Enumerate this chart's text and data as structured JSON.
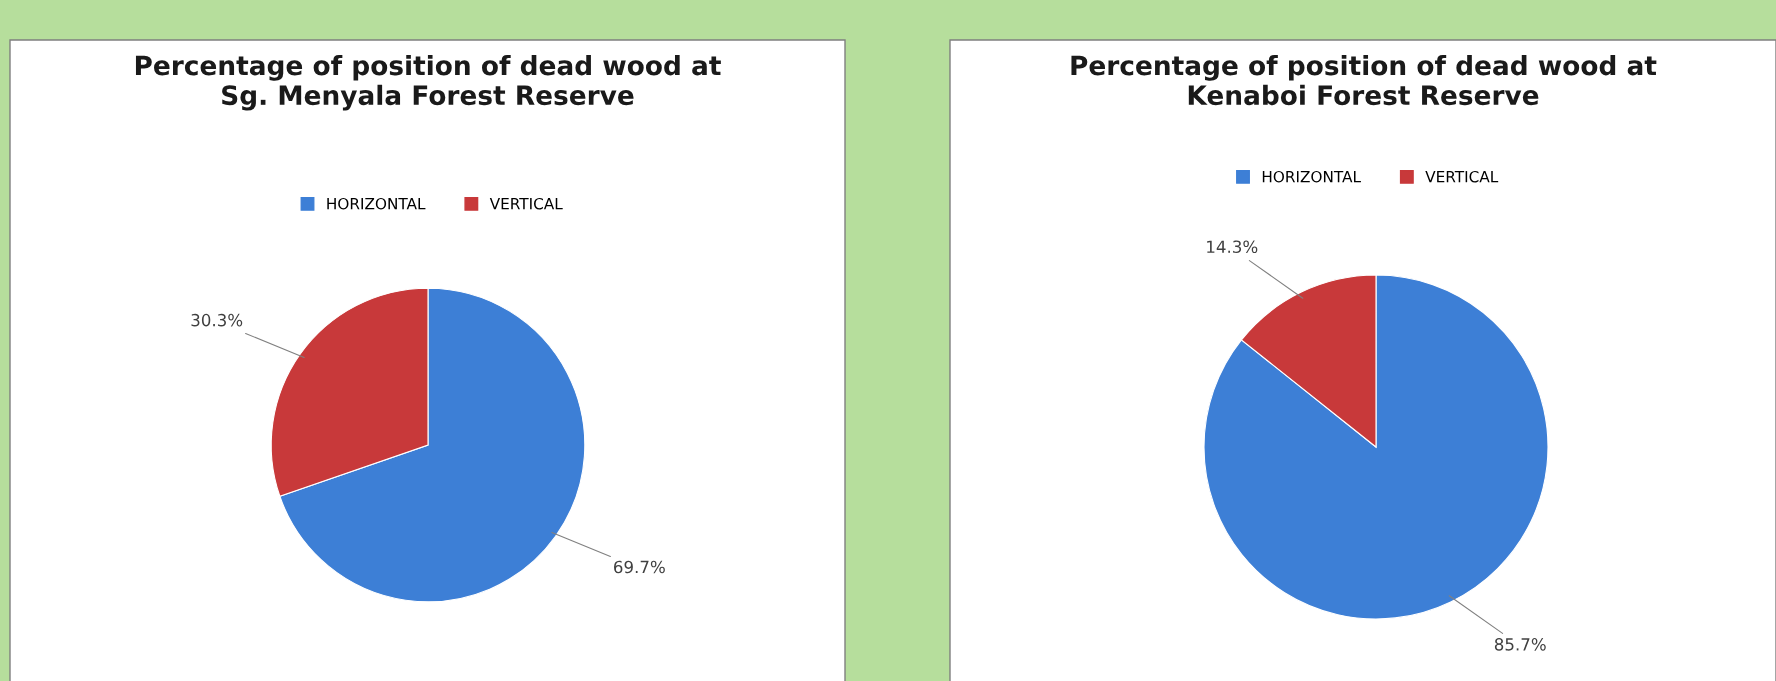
{
  "chart_data": [
    {
      "type": "pie",
      "title": "Percentage of position of dead wood at\nSg. Menyala Forest Reserve",
      "categories": [
        "HORIZONTAL",
        "VERTICAL"
      ],
      "values": [
        69.7,
        30.3
      ],
      "value_labels": [
        "69.7%",
        "30.3%"
      ],
      "colors": [
        "#3d7fd6",
        "#c8393a"
      ],
      "legend": "top"
    },
    {
      "type": "pie",
      "title": "Percentage of position of dead wood at\nKenaboi Forest Reserve",
      "categories": [
        "HORIZONTAL",
        "VERTICAL"
      ],
      "values": [
        85.7,
        14.3
      ],
      "value_labels": [
        "85.7%",
        "14.3%"
      ],
      "colors": [
        "#3d7fd6",
        "#c8393a"
      ],
      "legend": "top"
    }
  ]
}
